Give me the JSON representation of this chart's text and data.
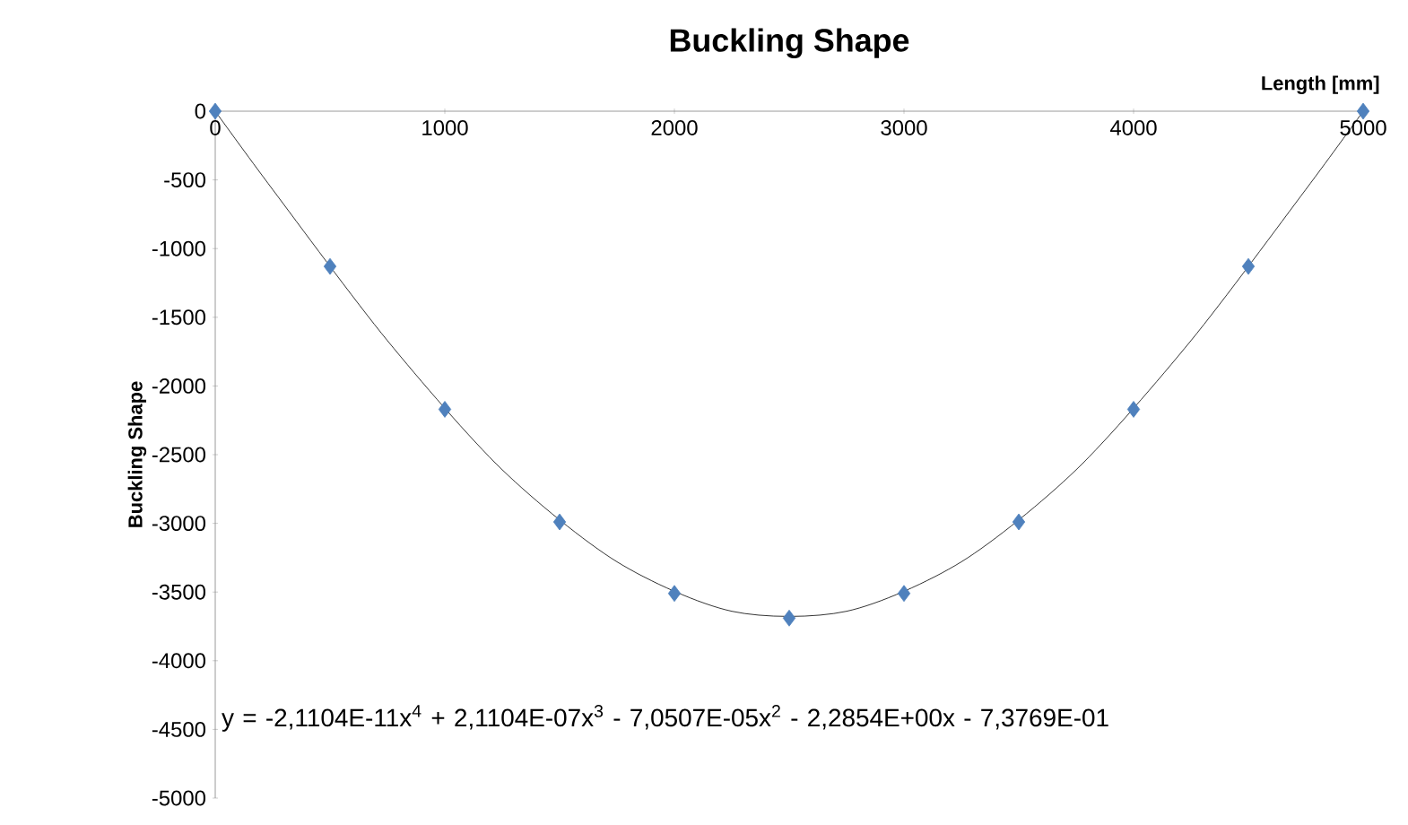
{
  "chart_data": {
    "type": "scatter",
    "title": "Buckling Shape",
    "xlabel": "Length [mm]",
    "ylabel": "Buckling Shape",
    "series": [
      {
        "color": "#4f81bd",
        "marker": "diamond",
        "x": [
          0,
          500,
          1000,
          1500,
          2000,
          2500,
          3000,
          3500,
          4000,
          4500,
          5000
        ],
        "values": [
          0,
          -1130,
          -2170,
          -2990,
          -3510,
          -3690,
          -3510,
          -2990,
          -2170,
          -1130,
          0
        ]
      },
      {
        "type": "line",
        "color": "#000000",
        "marker": "none",
        "line_style": "solid",
        "x": [
          0,
          250,
          750,
          1250,
          1750,
          2250,
          2750,
          3250,
          3750,
          4250,
          4750,
          5000
        ],
        "values": [
          0,
          -570,
          -1670,
          -2610,
          -3280,
          -3640,
          -3640,
          -3280,
          -2610,
          -1670,
          -570,
          0
        ]
      }
    ],
    "xlim": [
      0,
      5000
    ],
    "ylim": [
      -5000,
      0
    ],
    "xticks": [
      0,
      1000,
      2000,
      3000,
      4000,
      5000
    ],
    "yticks": [
      -5000,
      -4500,
      -4000,
      -3500,
      -3000,
      -2500,
      -2000,
      -1500,
      -1000,
      -500,
      0
    ],
    "annotations": [
      "y = -2,1104E-11x$^{4}$ + 2,1104E-07x$^{3}$ - 7,0507E-05x$^{2}$ - 2,2854E+00x - 7,3769E-01"
    ]
  }
}
